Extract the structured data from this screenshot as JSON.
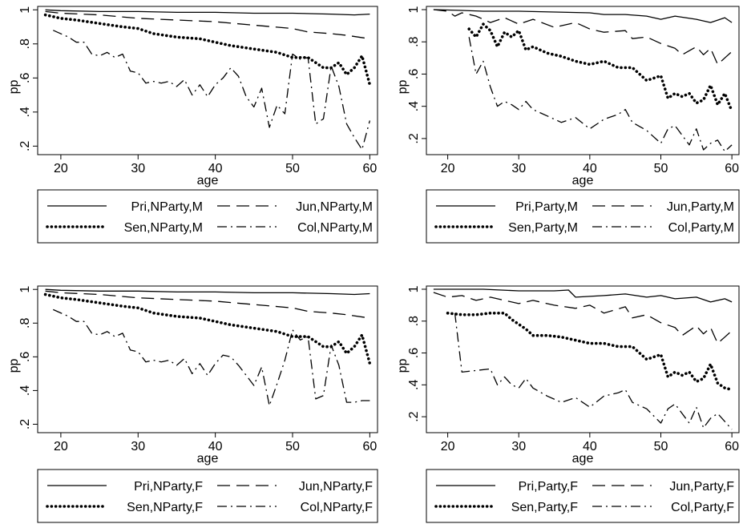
{
  "chart_data": [
    {
      "type": "line",
      "xlabel": "age",
      "ylabel": "pp",
      "xlim": [
        17,
        61
      ],
      "ylim": [
        0.15,
        1.02
      ],
      "xticks": [
        "20",
        "30",
        "40",
        "50",
        "60"
      ],
      "yticks": [
        ".2",
        ".4",
        ".6",
        ".8",
        "1"
      ],
      "grid": false,
      "legend": "bottom",
      "series": [
        {
          "name": "Pri,NParty,M",
          "style": "solid",
          "x": [
            18,
            20,
            25,
            30,
            35,
            40,
            45,
            50,
            55,
            58,
            60
          ],
          "y": [
            1.0,
            0.995,
            0.99,
            0.99,
            0.985,
            0.985,
            0.98,
            0.98,
            0.975,
            0.97,
            0.975
          ]
        },
        {
          "name": "Jun,NParty,M",
          "style": "dash",
          "x": [
            18,
            20,
            25,
            30,
            35,
            40,
            45,
            50,
            52,
            55,
            57,
            60
          ],
          "y": [
            0.99,
            0.98,
            0.97,
            0.95,
            0.94,
            0.93,
            0.91,
            0.89,
            0.87,
            0.86,
            0.85,
            0.83
          ]
        },
        {
          "name": "Sen,NParty,M",
          "style": "dot",
          "x": [
            18,
            20,
            22,
            25,
            28,
            30,
            32,
            35,
            38,
            40,
            42,
            45,
            48,
            50,
            52,
            54,
            55,
            56,
            57,
            58,
            59,
            60
          ],
          "y": [
            0.97,
            0.95,
            0.94,
            0.92,
            0.9,
            0.89,
            0.86,
            0.84,
            0.83,
            0.81,
            0.79,
            0.77,
            0.75,
            0.72,
            0.72,
            0.66,
            0.66,
            0.69,
            0.62,
            0.66,
            0.73,
            0.56
          ]
        },
        {
          "name": "Col,NParty,M",
          "style": "dashdot",
          "x": [
            19,
            21,
            22,
            23,
            24,
            25,
            26,
            27,
            28,
            29,
            30,
            31,
            32,
            33,
            34,
            35,
            36,
            37,
            38,
            39,
            40,
            41,
            42,
            43,
            44,
            45,
            46,
            47,
            48,
            49,
            50,
            51,
            52,
            53,
            54,
            55,
            56,
            57,
            58,
            59,
            60
          ],
          "y": [
            0.88,
            0.84,
            0.81,
            0.81,
            0.74,
            0.73,
            0.75,
            0.72,
            0.74,
            0.64,
            0.63,
            0.57,
            0.58,
            0.57,
            0.58,
            0.55,
            0.59,
            0.5,
            0.56,
            0.49,
            0.56,
            0.6,
            0.66,
            0.61,
            0.49,
            0.43,
            0.54,
            0.31,
            0.44,
            0.39,
            0.74,
            0.71,
            0.72,
            0.33,
            0.36,
            0.67,
            0.55,
            0.33,
            0.25,
            0.18,
            0.35
          ]
        }
      ]
    },
    {
      "type": "line",
      "xlabel": "age",
      "ylabel": "pp",
      "xlim": [
        17,
        61
      ],
      "ylim": [
        0.1,
        1.02
      ],
      "xticks": [
        "20",
        "30",
        "40",
        "50",
        "60"
      ],
      "yticks": [
        ".2",
        ".4",
        ".6",
        ".8",
        "1"
      ],
      "grid": false,
      "legend": "bottom",
      "series": [
        {
          "name": "Pri,Party,M",
          "style": "solid",
          "x": [
            18,
            22,
            25,
            30,
            35,
            40,
            42,
            45,
            48,
            50,
            52,
            55,
            57,
            59,
            60
          ],
          "y": [
            1.0,
            0.995,
            0.99,
            0.99,
            0.985,
            0.98,
            0.97,
            0.97,
            0.96,
            0.94,
            0.96,
            0.94,
            0.92,
            0.95,
            0.92
          ]
        },
        {
          "name": "Jun,Party,M",
          "style": "dash",
          "x": [
            18,
            20,
            21,
            22,
            24,
            26,
            28,
            30,
            32,
            35,
            38,
            40,
            42,
            45,
            46,
            48,
            50,
            52,
            53,
            55,
            56,
            57,
            58,
            59,
            60
          ],
          "y": [
            1.0,
            0.99,
            0.96,
            0.98,
            0.96,
            0.92,
            0.95,
            0.91,
            0.94,
            0.89,
            0.92,
            0.88,
            0.86,
            0.87,
            0.82,
            0.83,
            0.79,
            0.76,
            0.72,
            0.77,
            0.72,
            0.76,
            0.66,
            0.7,
            0.74
          ]
        },
        {
          "name": "Sen,Party,M",
          "style": "dot",
          "x": [
            23,
            24,
            25,
            26,
            27,
            28,
            29,
            30,
            31,
            32,
            34,
            36,
            38,
            40,
            42,
            44,
            46,
            48,
            50,
            51,
            52,
            53,
            54,
            55,
            56,
            57,
            58,
            59,
            60
          ],
          "y": [
            0.88,
            0.83,
            0.91,
            0.87,
            0.77,
            0.86,
            0.83,
            0.87,
            0.75,
            0.77,
            0.73,
            0.71,
            0.68,
            0.66,
            0.68,
            0.64,
            0.64,
            0.56,
            0.59,
            0.45,
            0.48,
            0.46,
            0.48,
            0.42,
            0.44,
            0.53,
            0.41,
            0.48,
            0.37
          ]
        },
        {
          "name": "Col,Party,M",
          "style": "dashdot",
          "x": [
            23,
            24,
            25,
            26,
            27,
            28,
            29,
            30,
            31,
            32,
            34,
            36,
            38,
            40,
            42,
            44,
            45,
            46,
            48,
            50,
            51,
            52,
            54,
            55,
            56,
            57,
            58,
            59,
            60
          ],
          "y": [
            0.83,
            0.6,
            0.68,
            0.52,
            0.4,
            0.43,
            0.41,
            0.38,
            0.43,
            0.38,
            0.34,
            0.3,
            0.33,
            0.26,
            0.32,
            0.35,
            0.38,
            0.3,
            0.25,
            0.17,
            0.26,
            0.28,
            0.16,
            0.26,
            0.13,
            0.17,
            0.19,
            0.12,
            0.16
          ]
        }
      ]
    },
    {
      "type": "line",
      "xlabel": "age",
      "ylabel": "pp",
      "xlim": [
        17,
        61
      ],
      "ylim": [
        0.15,
        1.02
      ],
      "xticks": [
        "20",
        "30",
        "40",
        "50",
        "60"
      ],
      "yticks": [
        ".2",
        ".4",
        ".6",
        ".8",
        "1"
      ],
      "grid": false,
      "legend": "bottom",
      "series": [
        {
          "name": "Pri,NParty,F",
          "style": "solid",
          "x": [
            18,
            20,
            25,
            30,
            35,
            40,
            45,
            50,
            55,
            58,
            60
          ],
          "y": [
            1.0,
            0.995,
            0.99,
            0.99,
            0.985,
            0.985,
            0.98,
            0.98,
            0.975,
            0.97,
            0.975
          ]
        },
        {
          "name": "Jun,NParty,F",
          "style": "dash",
          "x": [
            18,
            20,
            25,
            30,
            35,
            40,
            45,
            50,
            52,
            55,
            57,
            60
          ],
          "y": [
            0.99,
            0.98,
            0.97,
            0.95,
            0.94,
            0.93,
            0.91,
            0.89,
            0.87,
            0.86,
            0.85,
            0.83
          ]
        },
        {
          "name": "Sen,NParty,F",
          "style": "dot",
          "x": [
            18,
            20,
            22,
            25,
            28,
            30,
            32,
            35,
            38,
            40,
            42,
            45,
            48,
            50,
            52,
            54,
            55,
            56,
            57,
            58,
            59,
            60
          ],
          "y": [
            0.97,
            0.95,
            0.94,
            0.92,
            0.9,
            0.89,
            0.86,
            0.84,
            0.83,
            0.81,
            0.79,
            0.77,
            0.75,
            0.72,
            0.72,
            0.66,
            0.66,
            0.69,
            0.62,
            0.66,
            0.73,
            0.56
          ]
        },
        {
          "name": "Col,NParty,F",
          "style": "dashdot",
          "x": [
            19,
            21,
            22,
            23,
            24,
            25,
            26,
            27,
            28,
            29,
            30,
            31,
            32,
            33,
            34,
            35,
            36,
            37,
            38,
            39,
            40,
            41,
            42,
            43,
            44,
            45,
            46,
            47,
            48,
            49,
            50,
            51,
            52,
            53,
            54,
            55,
            56,
            57,
            58,
            59,
            60
          ],
          "y": [
            0.88,
            0.84,
            0.81,
            0.81,
            0.74,
            0.73,
            0.75,
            0.72,
            0.74,
            0.64,
            0.63,
            0.57,
            0.58,
            0.57,
            0.58,
            0.55,
            0.59,
            0.5,
            0.56,
            0.49,
            0.56,
            0.61,
            0.6,
            0.55,
            0.49,
            0.43,
            0.54,
            0.31,
            0.44,
            0.58,
            0.76,
            0.7,
            0.72,
            0.35,
            0.37,
            0.67,
            0.55,
            0.33,
            0.33,
            0.34,
            0.34
          ]
        }
      ]
    },
    {
      "type": "line",
      "xlabel": "age",
      "ylabel": "pp",
      "xlim": [
        17,
        61
      ],
      "ylim": [
        0.1,
        1.02
      ],
      "xticks": [
        "20",
        "30",
        "40",
        "50",
        "60"
      ],
      "yticks": [
        ".2",
        ".4",
        ".6",
        ".8",
        "1"
      ],
      "grid": false,
      "legend": "bottom",
      "series": [
        {
          "name": "Pri,Party,F",
          "style": "solid",
          "x": [
            18,
            22,
            25,
            30,
            35,
            37,
            38,
            40,
            42,
            45,
            48,
            50,
            52,
            55,
            57,
            59,
            60
          ],
          "y": [
            1.0,
            1.0,
            1.0,
            0.99,
            0.99,
            0.995,
            0.95,
            0.955,
            0.96,
            0.97,
            0.95,
            0.96,
            0.94,
            0.95,
            0.92,
            0.94,
            0.92
          ]
        },
        {
          "name": "Jun,Party,F",
          "style": "dash",
          "x": [
            18,
            20,
            22,
            24,
            26,
            28,
            30,
            32,
            35,
            38,
            40,
            42,
            45,
            46,
            48,
            50,
            52,
            53,
            55,
            56,
            57,
            58,
            59,
            60
          ],
          "y": [
            0.98,
            0.95,
            0.96,
            0.93,
            0.95,
            0.93,
            0.91,
            0.93,
            0.9,
            0.88,
            0.9,
            0.85,
            0.89,
            0.82,
            0.84,
            0.79,
            0.76,
            0.71,
            0.77,
            0.72,
            0.76,
            0.66,
            0.7,
            0.74
          ]
        },
        {
          "name": "Sen,Party,F",
          "style": "dot",
          "x": [
            20,
            22,
            24,
            26,
            28,
            29,
            30,
            31,
            32,
            34,
            36,
            38,
            40,
            42,
            44,
            46,
            48,
            50,
            51,
            52,
            53,
            54,
            55,
            56,
            57,
            58,
            59,
            60
          ],
          "y": [
            0.85,
            0.84,
            0.84,
            0.85,
            0.85,
            0.81,
            0.78,
            0.75,
            0.71,
            0.71,
            0.7,
            0.68,
            0.66,
            0.66,
            0.64,
            0.64,
            0.56,
            0.59,
            0.45,
            0.48,
            0.46,
            0.48,
            0.42,
            0.44,
            0.53,
            0.41,
            0.38,
            0.37
          ]
        },
        {
          "name": "Col,Party,F",
          "style": "dashdot",
          "x": [
            21,
            22,
            24,
            26,
            27,
            28,
            29,
            30,
            31,
            32,
            34,
            36,
            38,
            40,
            42,
            44,
            45,
            46,
            48,
            50,
            51,
            52,
            54,
            55,
            56,
            57,
            58,
            59,
            60
          ],
          "y": [
            0.85,
            0.48,
            0.49,
            0.5,
            0.4,
            0.45,
            0.4,
            0.38,
            0.44,
            0.38,
            0.33,
            0.29,
            0.32,
            0.26,
            0.33,
            0.35,
            0.37,
            0.29,
            0.25,
            0.16,
            0.25,
            0.28,
            0.16,
            0.26,
            0.13,
            0.19,
            0.22,
            0.17,
            0.12
          ]
        }
      ]
    }
  ]
}
